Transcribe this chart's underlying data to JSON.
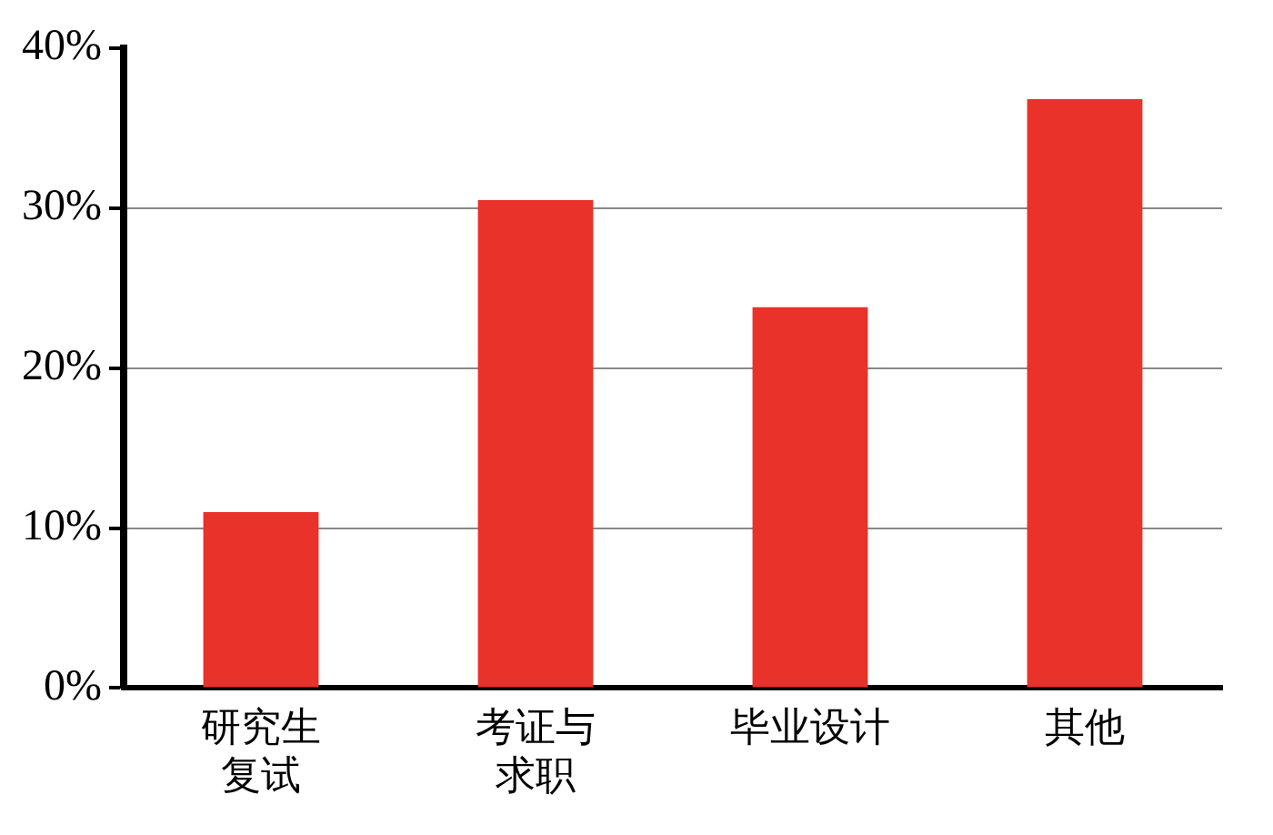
{
  "chart_data": {
    "type": "bar",
    "categories": [
      "研究生复试",
      "考证与求职",
      "毕业设计",
      "其他"
    ],
    "values": [
      11,
      30.5,
      23.8,
      36.8
    ],
    "color": "#e8322a",
    "ylim": [
      0,
      40
    ],
    "yticks": [
      {
        "value": 0,
        "label": "0%"
      },
      {
        "value": 10,
        "label": "10%"
      },
      {
        "value": 20,
        "label": "20%"
      },
      {
        "value": 30,
        "label": "30%"
      },
      {
        "value": 40,
        "label": "40%"
      }
    ],
    "grid": "y",
    "legend": false
  }
}
